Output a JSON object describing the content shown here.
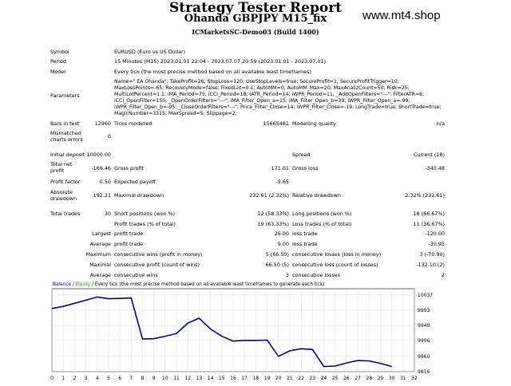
{
  "header": {
    "title": "Strategy Tester Report",
    "subtitle": "Ohanda GBPJPY M15_fix",
    "broker": "ICMarketsSC-Demo03 (Build 1400)",
    "watermark": "www.mt4.shop"
  },
  "info": {
    "symbol_label": "Symbol",
    "symbol_value": "EURUSD (Euro vs US Dollar)",
    "period_label": "Period",
    "period_value": "15 Minutes (M15) 2023.01.01 22:04 - 2023.07.07 20:59 (2023.01.01 - 2023.07.01)",
    "model_label": "Model",
    "model_value": "Every tick (the most precise method based on all available least timeframes)",
    "parameters_label": "Parameters",
    "parameters_value": "Name=\" EA Ohanda\"; TakeProfit=26; StopLoss=120; UseStopLevels=true; SecureProfit=1; SecureProfitTrigger=10; MaxLossPoints=-65; RecoveryMode=false; FixedLot=0.1; AutoMM=0; AutoMM_Max=20; MaxAnalizCount=50; Risk=25; MultiLotPercent=1.1; iMA_Period=75; iCCI_Period=18; iATR_Period=14; iWPR_Period=11; _AddOpenFilters=\"---\"; FilterATR=6; iCCI_OpenFilter=150; _OpenOrderFilters=\"---\"; iMA_Filter_Open_a=15; iMA_Filter_Open_b=39; iWPR_Filter_Open_a=-99; iWPR_Filter_Open_b=-95; _CloseOrderFilters=\"---\"; Price_Filter_Close=14; iWPR_Filter_Close=-19; LongTrade=true; ShortTrade=true; MagicNumber=3315; MaxSpread=5; Slippage=2;"
  },
  "stats": {
    "bars_label": "Bars in test",
    "bars_value": "12960",
    "ticks_label": "Ticks modelled",
    "ticks_value": "15665481",
    "quality_label": "Modelling quality",
    "quality_value": "n/a",
    "mismatch_label": "Mismatched charts errors",
    "mismatch_value": "0",
    "deposit_label": "Initial deposit",
    "deposit_value": "10000.00",
    "spread_label": "Spread",
    "spread_value": "Current (18)",
    "netprofit_label": "Total net profit",
    "netprofit_value": "-169.46",
    "grossprofit_label": "Gross profit",
    "grossprofit_value": "171.01",
    "grossloss_label": "Gross loss",
    "grossloss_value": "-340.48",
    "pf_label": "Profit factor",
    "pf_value": "0.50",
    "payoff_label": "Expected payoff",
    "payoff_value": "-5.65",
    "absdd_label": "Absolute drawdown",
    "absdd_value": "192.21",
    "maxdd_label": "Maximal drawdown",
    "maxdd_value": "232.61 (2.32%)",
    "reldd_label": "Relative drawdown",
    "reldd_value": "2.32% (232.61)",
    "trades_label": "Total trades",
    "trades_value": "30",
    "short_label": "Short positions (won %)",
    "short_value": "12 (58.33%)",
    "long_label": "Long positions (won %)",
    "long_value": "18 (66.67%)",
    "ptrades_label": "Profit trades (% of total)",
    "ptrades_value": "19 (63.33%)",
    "ltrades_label": "Loss trades (% of total)",
    "ltrades_value": "11 (36.67%)",
    "largest_label": "Largest",
    "largest_profit_label": "profit trade",
    "largest_profit_value": "26.00",
    "largest_loss_label": "loss trade",
    "largest_loss_value": "-120.00",
    "average_label": "Average",
    "average_profit_label": "profit trade",
    "average_profit_value": "9.00",
    "average_loss_label": "loss trade",
    "average_loss_value": "-30.95",
    "maximum_label": "Maximum",
    "max_cw_label": "consecutive wins (profit in money)",
    "max_cw_value": "5 (66.50)",
    "max_cl_label": "consecutive losses (loss in money)",
    "max_cl_value": "3 (-70.90)",
    "maximal_label": "Maximal",
    "maximal_cp_label": "consecutive profit (count of wins)",
    "maximal_cp_value": "66.50 (5)",
    "maximal_cl_label": "consecutive loss (count of losses)",
    "maximal_cl_value": "-132.10 (2)",
    "average2_label": "Average",
    "avg_cw_label": "consecutive wins",
    "avg_cw_value": "3",
    "avg_cl_label": "consecutive losses",
    "avg_cl_value": "2"
  },
  "chart_data": {
    "type": "line",
    "legend_balance": "Balance",
    "legend_sep": " / ",
    "legend_equity": "Equity",
    "legend_rest": " / Every tick (the most precise method based on all available least timeframes to generate each tick)",
    "x_ticks": [
      0,
      1,
      2,
      3,
      4,
      5,
      6,
      7,
      8,
      9,
      10,
      11,
      12,
      13,
      14,
      15,
      16,
      17,
      18,
      19,
      20,
      21,
      22,
      23,
      24,
      25,
      26,
      27,
      28,
      29,
      30,
      31,
      32
    ],
    "y_ticks": [
      10037,
      9993,
      9949,
      9906,
      9860,
      9816
    ],
    "xlim": [
      0,
      32
    ],
    "ylim": [
      9816,
      10055
    ],
    "series": [
      {
        "name": "Balance",
        "color": "#00008b",
        "x": [
          0,
          1,
          2,
          3,
          4,
          5,
          6,
          7,
          8,
          9,
          10,
          11,
          12,
          13,
          14,
          15,
          16,
          17,
          18,
          19,
          20,
          21,
          22,
          23,
          24,
          25,
          26,
          27,
          28,
          29,
          30
        ],
        "y": [
          9998,
          10004,
          10013,
          10022,
          10031,
          10026,
          10027,
          10028,
          9910,
          9911,
          9918,
          9926,
          9956,
          9970,
          9939,
          9918,
          9904,
          9906,
          9906,
          9907,
          9860,
          9876,
          9882,
          9880,
          9831,
          9832,
          9841,
          9848,
          9847,
          9840,
          9831
        ]
      }
    ]
  }
}
